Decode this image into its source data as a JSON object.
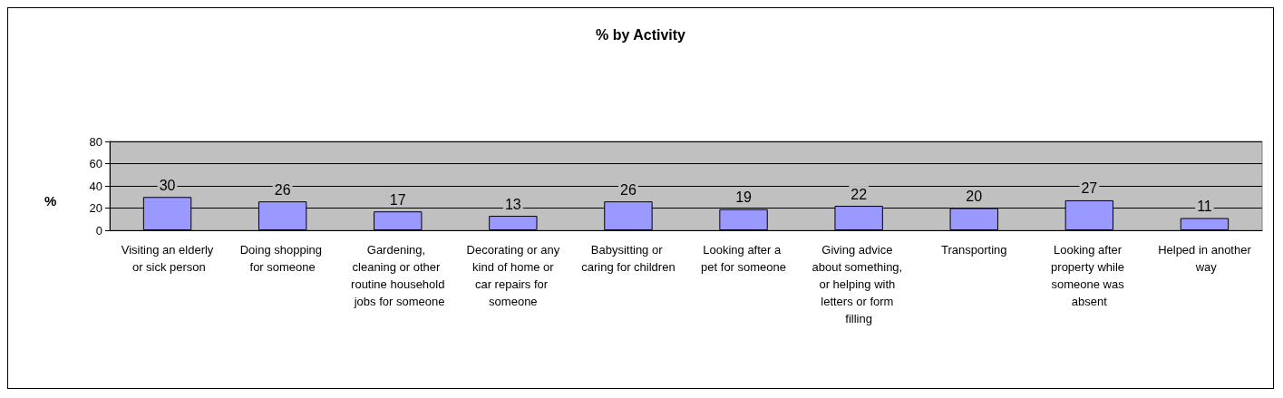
{
  "chart_data": {
    "type": "bar",
    "title": "% by Activity",
    "ylabel": "%",
    "categories": [
      "Visiting an elderly or sick person",
      "Doing shopping for someone",
      "Gardening, cleaning or other routine household jobs for someone",
      "Decorating or any kind of home or car repairs for someone",
      "Babysitting or caring for children",
      "Looking after a pet for someone",
      "Giving advice about something, or helping with letters or form filling",
      "Transporting",
      "Looking after property while someone was absent",
      "Helped in another way"
    ],
    "values": [
      30,
      26,
      17,
      13,
      26,
      19,
      22,
      20,
      27,
      11
    ],
    "color": "#9999ff",
    "ylim": [
      0,
      80
    ],
    "yticks": [
      0,
      20,
      40,
      60,
      80
    ],
    "grid": "y",
    "data_labels": true
  }
}
